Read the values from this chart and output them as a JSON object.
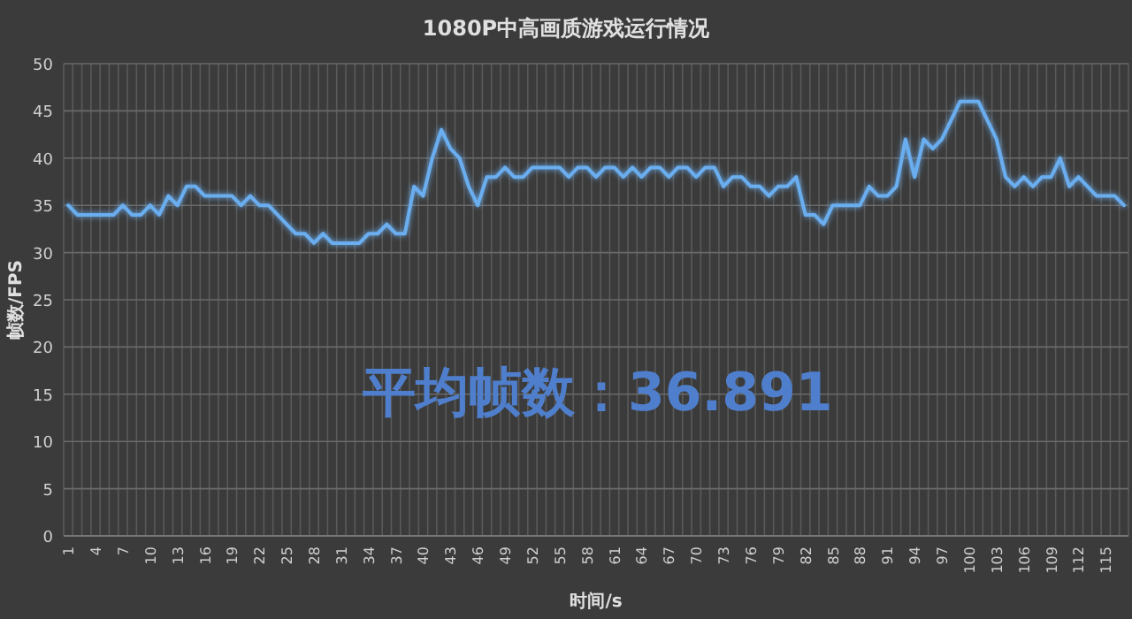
{
  "chart_data": {
    "type": "line",
    "title": "1080P中高画质游戏运行情况",
    "xlabel": "时间/s",
    "ylabel": "帧数/FPS",
    "annotations": [
      "平均帧数：36.891"
    ],
    "categories": [
      "1",
      null,
      null,
      "4",
      null,
      null,
      "7",
      null,
      null,
      "10",
      null,
      null,
      "13",
      null,
      null,
      "16",
      null,
      null,
      "19",
      null,
      null,
      "22",
      null,
      null,
      "25",
      null,
      null,
      "28",
      null,
      null,
      "31",
      null,
      null,
      "34",
      null,
      null,
      "37",
      null,
      null,
      "40",
      null,
      null,
      "43",
      null,
      null,
      "46",
      null,
      null,
      "49",
      null,
      null,
      "52",
      null,
      null,
      "55",
      null,
      null,
      "58",
      null,
      null,
      "61",
      null,
      null,
      "64",
      null,
      null,
      "67",
      null,
      null,
      "70",
      null,
      null,
      "73",
      null,
      null,
      "76",
      null,
      null,
      "79",
      null,
      null,
      "82",
      null,
      null,
      "85",
      null,
      null,
      "88",
      null,
      null,
      "91",
      null,
      null,
      "94",
      null,
      null,
      "97",
      null,
      null,
      "100",
      null,
      null,
      "103",
      null,
      null,
      "106",
      null,
      null,
      "109",
      null,
      null,
      "112",
      null,
      null,
      "115",
      null,
      null
    ],
    "series": [
      {
        "color": "#6aaef0",
        "values": [
          35,
          34,
          34,
          34,
          34,
          34,
          35,
          34,
          34,
          35,
          34,
          36,
          35,
          37,
          37,
          36,
          36,
          36,
          36,
          35,
          36,
          35,
          35,
          34,
          33,
          32,
          32,
          31,
          32,
          31,
          31,
          31,
          31,
          32,
          32,
          33,
          32,
          32,
          37,
          36,
          40,
          43,
          41,
          40,
          37,
          35,
          38,
          38,
          39,
          38,
          38,
          39,
          39,
          39,
          39,
          38,
          39,
          39,
          38,
          39,
          39,
          38,
          39,
          38,
          39,
          39,
          38,
          39,
          39,
          38,
          39,
          39,
          37,
          38,
          38,
          37,
          37,
          36,
          37,
          37,
          38,
          34,
          34,
          33,
          35,
          35,
          35,
          35,
          37,
          36,
          36,
          37,
          42,
          38,
          42,
          41,
          42,
          44,
          46,
          46,
          46,
          44,
          42,
          38,
          37,
          38,
          37,
          38,
          38,
          40,
          37,
          38,
          37,
          36,
          36,
          36,
          35
        ]
      }
    ],
    "ylim": [
      0,
      50
    ],
    "yticks": [
      0,
      5,
      10,
      15,
      20,
      25,
      30,
      35,
      40,
      45,
      50
    ],
    "grid": true,
    "marker": "none",
    "line_style": "solid"
  }
}
